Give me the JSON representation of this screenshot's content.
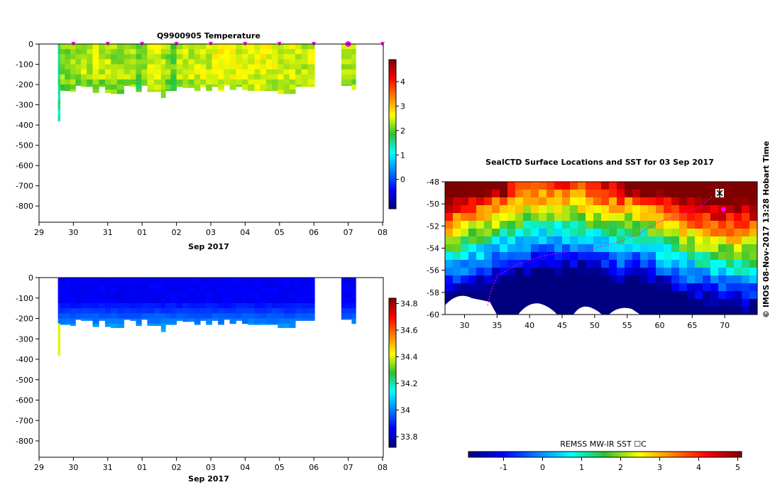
{
  "chart_data": [
    {
      "type": "heatmap",
      "title": "Q9900905  Temperature",
      "xlabel": "Sep 2017",
      "x_tick_labels": [
        "29",
        "30",
        "31",
        "01",
        "02",
        "03",
        "04",
        "05",
        "06",
        "07",
        "08"
      ],
      "y_tick_labels": [
        "0",
        "-100",
        "-200",
        "-300",
        "-400",
        "-500",
        "-600",
        "-700",
        "-800"
      ],
      "ylim": [
        -880,
        0
      ],
      "colorbar": {
        "ticks": [
          "0",
          "1",
          "2",
          "3",
          "4"
        ],
        "range": [
          -1.2,
          4.9
        ]
      },
      "cmap_range": [
        -1.2,
        4.9
      ],
      "profiles": [
        {
          "t": 29.55,
          "w": 0.06,
          "depth": 380,
          "value": 1.6
        },
        {
          "t": 29.62,
          "w": 0.14,
          "depth": 230,
          "value": 2.2
        },
        {
          "t": 29.75,
          "w": 0.16,
          "depth": 230,
          "value": 2.1
        },
        {
          "t": 29.91,
          "w": 0.15,
          "depth": 235,
          "value": 2.3
        },
        {
          "t": 30.06,
          "w": 0.16,
          "depth": 205,
          "value": 2.2
        },
        {
          "t": 30.22,
          "w": 0.17,
          "depth": 210,
          "value": 2.35
        },
        {
          "t": 30.39,
          "w": 0.17,
          "depth": 210,
          "value": 2.25
        },
        {
          "t": 30.56,
          "w": 0.18,
          "depth": 240,
          "value": 2.4
        },
        {
          "t": 30.74,
          "w": 0.18,
          "depth": 210,
          "value": 2.3
        },
        {
          "t": 30.92,
          "w": 0.17,
          "depth": 240,
          "value": 2.35
        },
        {
          "t": 31.09,
          "w": 0.18,
          "depth": 245,
          "value": 2.25
        },
        {
          "t": 31.27,
          "w": 0.2,
          "depth": 245,
          "value": 2.3
        },
        {
          "t": 31.47,
          "w": 0.18,
          "depth": 205,
          "value": 2.35
        },
        {
          "t": 31.65,
          "w": 0.17,
          "depth": 210,
          "value": 2.4
        },
        {
          "t": 31.82,
          "w": 0.16,
          "depth": 235,
          "value": 2.0
        },
        {
          "t": 31.98,
          "w": 0.17,
          "depth": 205,
          "value": 2.3
        },
        {
          "t": 32.15,
          "w": 0.2,
          "depth": 235,
          "value": 2.45
        },
        {
          "t": 32.35,
          "w": 0.2,
          "depth": 235,
          "value": 2.4
        },
        {
          "t": 32.55,
          "w": 0.13,
          "depth": 265,
          "value": 2.3
        },
        {
          "t": 32.68,
          "w": 0.15,
          "depth": 230,
          "value": 2.2
        },
        {
          "t": 32.83,
          "w": 0.17,
          "depth": 230,
          "value": 2.0
        },
        {
          "t": 33.0,
          "w": 0.18,
          "depth": 210,
          "value": 2.35
        },
        {
          "t": 33.18,
          "w": 0.17,
          "depth": 215,
          "value": 2.45
        },
        {
          "t": 33.35,
          "w": 0.17,
          "depth": 215,
          "value": 2.4
        },
        {
          "t": 33.52,
          "w": 0.17,
          "depth": 230,
          "value": 2.5
        },
        {
          "t": 33.69,
          "w": 0.17,
          "depth": 210,
          "value": 2.45
        },
        {
          "t": 33.86,
          "w": 0.17,
          "depth": 230,
          "value": 2.4
        },
        {
          "t": 34.03,
          "w": 0.18,
          "depth": 210,
          "value": 2.55
        },
        {
          "t": 34.21,
          "w": 0.17,
          "depth": 230,
          "value": 2.6
        },
        {
          "t": 34.38,
          "w": 0.17,
          "depth": 205,
          "value": 2.6
        },
        {
          "t": 34.55,
          "w": 0.18,
          "depth": 225,
          "value": 2.55
        },
        {
          "t": 34.73,
          "w": 0.18,
          "depth": 210,
          "value": 2.5
        },
        {
          "t": 34.91,
          "w": 0.17,
          "depth": 225,
          "value": 2.55
        },
        {
          "t": 35.08,
          "w": 0.19,
          "depth": 230,
          "value": 2.6
        },
        {
          "t": 35.27,
          "w": 0.17,
          "depth": 230,
          "value": 2.5
        },
        {
          "t": 35.44,
          "w": 0.17,
          "depth": 230,
          "value": 2.6
        },
        {
          "t": 35.61,
          "w": 0.17,
          "depth": 230,
          "value": 2.55
        },
        {
          "t": 35.78,
          "w": 0.17,
          "depth": 230,
          "value": 2.5
        },
        {
          "t": 35.95,
          "w": 0.17,
          "depth": 245,
          "value": 2.45
        },
        {
          "t": 36.12,
          "w": 0.17,
          "depth": 245,
          "value": 2.4
        },
        {
          "t": 36.29,
          "w": 0.17,
          "depth": 245,
          "value": 2.5
        },
        {
          "t": 36.46,
          "w": 0.18,
          "depth": 210,
          "value": 2.45
        },
        {
          "t": 36.64,
          "w": 0.18,
          "depth": 210,
          "value": 2.4
        },
        {
          "t": 36.82,
          "w": 0.2,
          "depth": 210,
          "value": 2.45
        },
        {
          "t": 37.8,
          "w": 0.3,
          "depth": 205,
          "value": 2.3
        },
        {
          "t": 38.1,
          "w": 0.12,
          "depth": 225,
          "value": 2.4
        }
      ]
    },
    {
      "type": "heatmap",
      "title": "",
      "xlabel": "Sep 2017",
      "x_tick_labels": [
        "29",
        "30",
        "31",
        "01",
        "02",
        "03",
        "04",
        "05",
        "06",
        "07",
        "08"
      ],
      "y_tick_labels": [
        "0",
        "-100",
        "-200",
        "-300",
        "-400",
        "-500",
        "-600",
        "-700",
        "-800"
      ],
      "ylim": [
        -880,
        0
      ],
      "colorbar": {
        "ticks": [
          "33.8",
          "34",
          "34.2",
          "34.4",
          "34.6",
          "34.8"
        ],
        "range": [
          33.72,
          34.84
        ]
      },
      "cmap_range": [
        33.72,
        34.84
      ]
    },
    {
      "type": "heatmap",
      "title": "SealCTD Surface Locations and SST for 03 Sep 2017",
      "x_tick_labels": [
        "30",
        "35",
        "40",
        "45",
        "50",
        "55",
        "60",
        "65",
        "70"
      ],
      "y_tick_labels": [
        "-48",
        "-50",
        "-52",
        "-54",
        "-56",
        "-58",
        "-60"
      ],
      "xlim": [
        27,
        75
      ],
      "ylim": [
        -60,
        -48
      ],
      "colorbar": {
        "label": "REMSS MW-IR SST ☐C",
        "ticks": [
          "-1",
          "0",
          "1",
          "2",
          "3",
          "4",
          "5"
        ],
        "range": [
          -1.9,
          5.1
        ]
      },
      "track": [
        [
          68,
          -49.4
        ],
        [
          66,
          -50.3
        ],
        [
          63,
          -51.0
        ],
        [
          60,
          -51.6
        ],
        [
          57,
          -52.6
        ],
        [
          54,
          -53.4
        ],
        [
          50,
          -54.0
        ],
        [
          46,
          -54.3
        ],
        [
          42,
          -54.7
        ],
        [
          38,
          -55.5
        ],
        [
          35,
          -56.5
        ],
        [
          34,
          -58.0
        ],
        [
          33.5,
          -59.3
        ]
      ],
      "current_location": [
        69.8,
        -50.5
      ]
    }
  ],
  "credit": "©  IMOS 08-Nov-2017 13:28 Hobart Time"
}
